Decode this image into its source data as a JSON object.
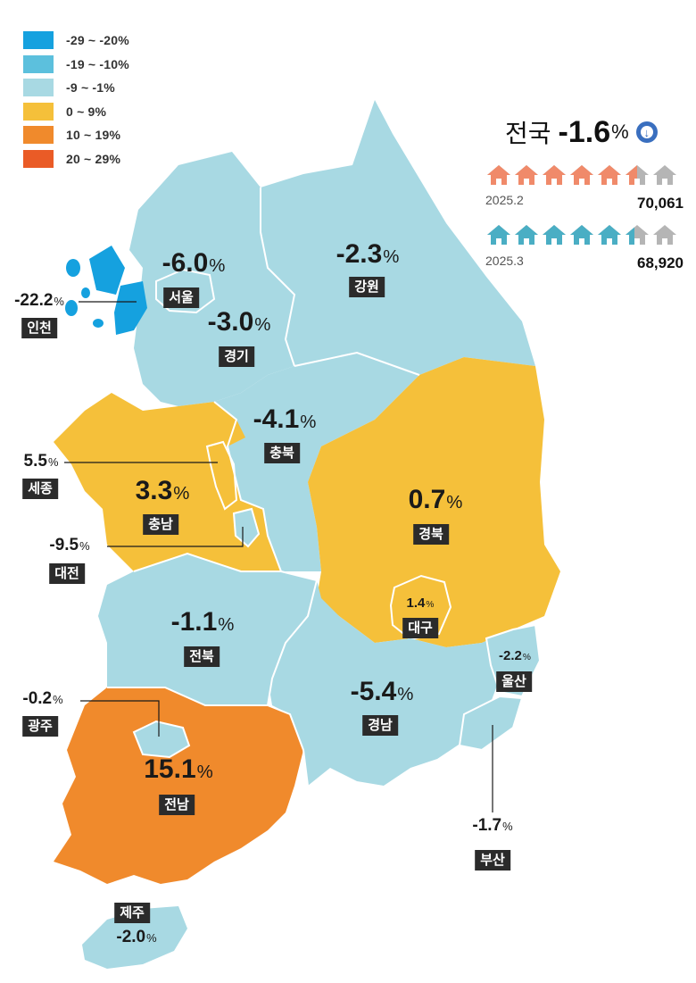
{
  "legend": [
    {
      "label": "-29 ~ -20%",
      "color": "#15a1df"
    },
    {
      "label": "-19 ~ -10%",
      "color": "#5cc0dd"
    },
    {
      "label": "-9 ~ -1%",
      "color": "#a8d9e3"
    },
    {
      "label": "0 ~ 9%",
      "color": "#f5c03a"
    },
    {
      "label": "10 ~ 19%",
      "color": "#f08a2c"
    },
    {
      "label": "20 ~ 29%",
      "color": "#ea5b26"
    }
  ],
  "national": {
    "name": "전국",
    "value": "-1.6",
    "unit": "%",
    "icon": "down-arrow-circle-icon"
  },
  "comparison": [
    {
      "period": "2025.2",
      "count": "70,061",
      "color": "#f08a6a",
      "filled": 5.5
    },
    {
      "period": "2025.3",
      "count": "68,920",
      "color": "#4aaec4",
      "filled": 5.4
    }
  ],
  "regions": {
    "seoul": {
      "name": "서울",
      "value": "-6.0",
      "unit": "%"
    },
    "gyeonggi": {
      "name": "경기",
      "value": "-3.0",
      "unit": "%"
    },
    "incheon": {
      "name": "인천",
      "value": "-22.2",
      "unit": "%"
    },
    "gangwon": {
      "name": "강원",
      "value": "-2.3",
      "unit": "%"
    },
    "chungbuk": {
      "name": "충북",
      "value": "-4.1",
      "unit": "%"
    },
    "chungnam": {
      "name": "충남",
      "value": "3.3",
      "unit": "%"
    },
    "sejong": {
      "name": "세종",
      "value": "5.5",
      "unit": "%"
    },
    "daejeon": {
      "name": "대전",
      "value": "-9.5",
      "unit": "%"
    },
    "gyeongbuk": {
      "name": "경북",
      "value": "0.7",
      "unit": "%"
    },
    "daegu": {
      "name": "대구",
      "value": "1.4",
      "unit": "%"
    },
    "jeonbuk": {
      "name": "전북",
      "value": "-1.1",
      "unit": "%"
    },
    "gwangju": {
      "name": "광주",
      "value": "-0.2",
      "unit": "%"
    },
    "jeonnam": {
      "name": "전남",
      "value": "15.1",
      "unit": "%"
    },
    "gyeongnam": {
      "name": "경남",
      "value": "-5.4",
      "unit": "%"
    },
    "ulsan": {
      "name": "울산",
      "value": "-2.2",
      "unit": "%"
    },
    "busan": {
      "name": "부산",
      "value": "-1.7",
      "unit": "%"
    },
    "jeju": {
      "name": "제주",
      "value": "-2.0",
      "unit": "%"
    }
  }
}
